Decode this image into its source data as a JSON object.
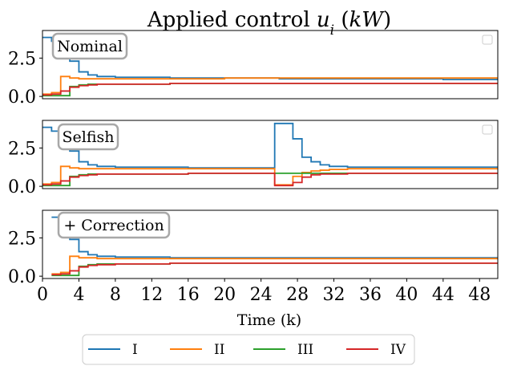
{
  "chart_data": {
    "type": "line",
    "step": "post",
    "title": "Applied control u_i (kW)",
    "title_parts": [
      "Applied control ",
      "u",
      "i",
      " (",
      "kW",
      ")"
    ],
    "xlabel": "Time (k)",
    "xlim": [
      0,
      50
    ],
    "xticks": [
      0,
      4,
      8,
      12,
      16,
      20,
      24,
      28,
      32,
      36,
      40,
      44,
      48
    ],
    "ylim": [
      -0.15,
      4.3
    ],
    "yticks": [
      0,
      2.5
    ],
    "ytick_labels": [
      "0.0",
      "2.5"
    ],
    "legend": {
      "placement": "bottom-center",
      "entries": [
        "I",
        "II",
        "III",
        "IV"
      ],
      "colors": [
        "#1f77b4",
        "#ff7f0e",
        "#2ca02c",
        "#d62728"
      ]
    },
    "panels": [
      {
        "label": "Nominal",
        "empty_legend_box": true,
        "series": [
          {
            "name": "I",
            "x": [
              0,
              1,
              2,
              3,
              4,
              5,
              6,
              8,
              14,
              20,
              26,
              30,
              44,
              50
            ],
            "y": [
              3.85,
              3.6,
              3.2,
              2.3,
              1.6,
              1.4,
              1.3,
              1.25,
              1.2,
              1.2,
              1.15,
              1.15,
              1.1,
              1.1
            ]
          },
          {
            "name": "II",
            "x": [
              0,
              1,
              2,
              3,
              4,
              5,
              6,
              8,
              14,
              20,
              26,
              30,
              44,
              50
            ],
            "y": [
              0.15,
              0.25,
              1.3,
              1.2,
              1.15,
              1.15,
              1.15,
              1.15,
              1.15,
              1.2,
              1.2,
              1.2,
              1.2,
              1.2
            ]
          },
          {
            "name": "III",
            "x": [
              0,
              1,
              2,
              3,
              4,
              5,
              6,
              8,
              14,
              20,
              26,
              30,
              44,
              50
            ],
            "y": [
              0.05,
              0.05,
              0.05,
              0.65,
              0.75,
              0.8,
              0.8,
              0.8,
              0.85,
              0.85,
              0.85,
              0.85,
              0.85,
              0.85
            ]
          },
          {
            "name": "IV",
            "x": [
              0,
              1,
              2,
              3,
              4,
              5,
              6,
              8,
              14,
              20,
              26,
              30,
              44,
              50
            ],
            "y": [
              0.1,
              0.15,
              0.35,
              0.6,
              0.7,
              0.75,
              0.8,
              0.8,
              0.85,
              0.85,
              0.85,
              0.85,
              0.85,
              0.85
            ]
          }
        ]
      },
      {
        "label": "Selfish",
        "empty_legend_box": true,
        "series": [
          {
            "name": "I",
            "x": [
              0,
              1,
              2,
              3,
              4,
              5,
              6,
              8,
              16,
              25.5,
              27.5,
              28.5,
              29.5,
              30.5,
              31.5,
              33.5,
              50
            ],
            "y": [
              3.85,
              3.6,
              3.2,
              2.3,
              1.6,
              1.4,
              1.3,
              1.25,
              1.2,
              4.1,
              3.1,
              1.9,
              1.6,
              1.4,
              1.3,
              1.25,
              1.25
            ]
          },
          {
            "name": "II",
            "x": [
              0,
              1,
              2,
              3,
              4,
              5,
              6,
              8,
              16,
              25.5,
              27.5,
              28.5,
              29.5,
              30.5,
              31.5,
              33.5,
              50
            ],
            "y": [
              0.15,
              0.25,
              1.3,
              1.2,
              1.15,
              1.15,
              1.15,
              1.15,
              1.15,
              0.1,
              0.65,
              0.9,
              1.0,
              1.05,
              1.1,
              1.15,
              1.15
            ]
          },
          {
            "name": "III",
            "x": [
              0,
              1,
              2,
              3,
              4,
              5,
              6,
              8,
              16,
              25.5,
              27.5,
              28.5,
              29.5,
              30.5,
              31.5,
              33.5,
              50
            ],
            "y": [
              0.05,
              0.05,
              0.05,
              0.65,
              0.75,
              0.8,
              0.8,
              0.8,
              0.85,
              0.85,
              0.85,
              0.85,
              0.85,
              0.85,
              0.85,
              0.85,
              0.85
            ]
          },
          {
            "name": "IV",
            "x": [
              0,
              1,
              2,
              3,
              4,
              5,
              6,
              8,
              16,
              25.5,
              27.5,
              28.5,
              29.5,
              30.5,
              31.5,
              33.5,
              50
            ],
            "y": [
              0.1,
              0.15,
              0.35,
              0.6,
              0.7,
              0.75,
              0.8,
              0.8,
              0.85,
              0.05,
              0.25,
              0.6,
              0.75,
              0.8,
              0.8,
              0.85,
              0.85
            ]
          }
        ]
      },
      {
        "label": "+ Correction",
        "empty_legend_box": false,
        "series": [
          {
            "name": "I",
            "x": [
              1,
              2,
              3,
              4,
              5,
              6,
              8,
              14,
              50
            ],
            "y": [
              3.85,
              3.6,
              2.4,
              1.6,
              1.4,
              1.3,
              1.25,
              1.2,
              1.2
            ]
          },
          {
            "name": "II",
            "x": [
              1,
              2,
              3,
              4,
              5,
              6,
              8,
              14,
              50
            ],
            "y": [
              0.15,
              0.25,
              1.3,
              1.2,
              1.2,
              1.15,
              1.15,
              1.15,
              1.15
            ]
          },
          {
            "name": "III",
            "x": [
              1,
              2,
              3,
              4,
              5,
              6,
              8,
              14,
              50
            ],
            "y": [
              0.05,
              0.05,
              0.05,
              0.65,
              0.75,
              0.8,
              0.8,
              0.85,
              0.85
            ]
          },
          {
            "name": "IV",
            "x": [
              1,
              2,
              3,
              4,
              5,
              6,
              8,
              14,
              50
            ],
            "y": [
              0.1,
              0.15,
              0.35,
              0.6,
              0.7,
              0.75,
              0.8,
              0.85,
              0.85
            ]
          }
        ]
      }
    ]
  }
}
